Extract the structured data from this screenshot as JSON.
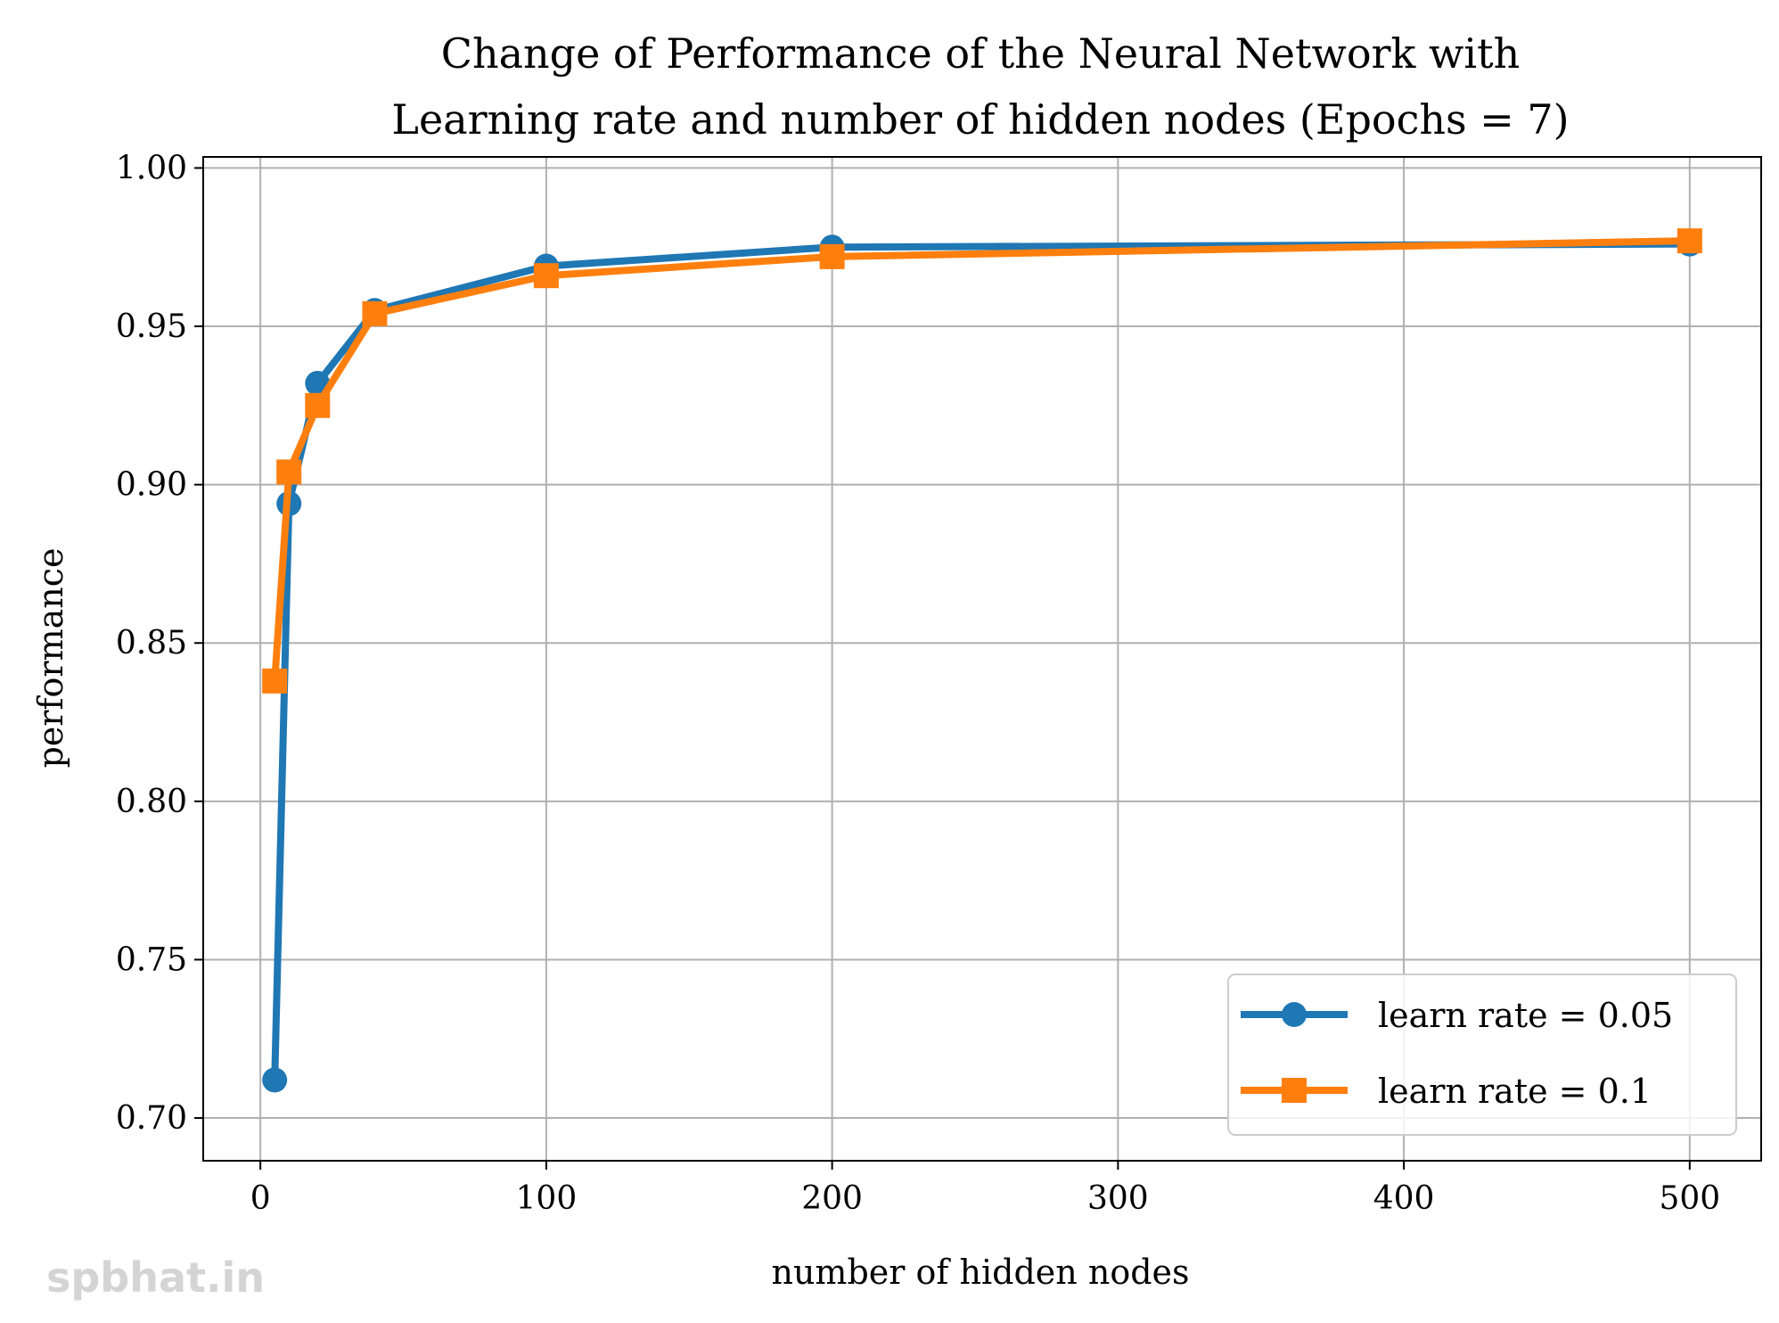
{
  "chart_data": {
    "type": "line",
    "title_lines": [
      "Change of Performance of the Neural Network with",
      "Learning rate and number of hidden nodes (Epochs = 7)"
    ],
    "xlabel": "number of hidden nodes",
    "ylabel": "performance",
    "xlim": [
      -20,
      525
    ],
    "ylim": [
      0.6865,
      1.0035
    ],
    "xticks": [
      0,
      100,
      200,
      300,
      400,
      500
    ],
    "xtick_labels": [
      "0",
      "100",
      "200",
      "300",
      "400",
      "500"
    ],
    "yticks": [
      0.7,
      0.75,
      0.8,
      0.85,
      0.9,
      0.95,
      1.0
    ],
    "ytick_labels": [
      "0.70",
      "0.75",
      "0.80",
      "0.85",
      "0.90",
      "0.95",
      "1.00"
    ],
    "grid": true,
    "legend_position": "lower-right",
    "series": [
      {
        "name": "learn rate = 0.05",
        "color": "#1f77b4",
        "marker": "circle",
        "x": [
          5,
          10,
          20,
          40,
          100,
          200,
          500
        ],
        "y": [
          0.712,
          0.894,
          0.932,
          0.955,
          0.969,
          0.975,
          0.976
        ]
      },
      {
        "name": "learn rate = 0.1",
        "color": "#ff7f0e",
        "marker": "square",
        "x": [
          5,
          10,
          20,
          40,
          100,
          200,
          500
        ],
        "y": [
          0.838,
          0.904,
          0.925,
          0.954,
          0.966,
          0.972,
          0.977
        ]
      }
    ]
  },
  "watermark": "spbhat.in"
}
